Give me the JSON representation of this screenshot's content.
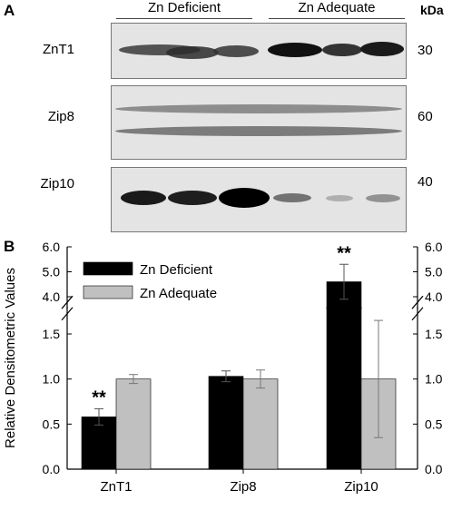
{
  "panel_a": {
    "label": "A",
    "groups": [
      "Zn Deficient",
      "Zn Adequate"
    ],
    "kda_label": "kDa",
    "blots": [
      {
        "name": "ZnT1",
        "mw": "30"
      },
      {
        "name": "Zip8",
        "mw": "60"
      },
      {
        "name": "Zip10",
        "mw": "40"
      }
    ]
  },
  "panel_b": {
    "label": "B"
  },
  "chart_data": {
    "type": "bar",
    "ylabel": "Relative Densitometric Values",
    "xlabel": "",
    "categories": [
      "ZnT1",
      "Zip8",
      "Zip10"
    ],
    "series": [
      {
        "name": "Zn Deficient",
        "color": "#000000",
        "values": [
          0.58,
          1.03,
          4.6
        ],
        "errors": [
          0.09,
          0.06,
          0.7
        ]
      },
      {
        "name": "Zn Adequate",
        "color": "#c0c0c0",
        "values": [
          1.0,
          1.0,
          1.0
        ],
        "errors": [
          0.05,
          0.1,
          0.65
        ]
      }
    ],
    "y_axis_break": {
      "lower_range": [
        0.0,
        1.8
      ],
      "upper_range": [
        3.5,
        6.0
      ]
    },
    "yticks_lower": [
      "0.0",
      "0.5",
      "1.0",
      "1.5"
    ],
    "yticks_upper": [
      "4.0",
      "5.0",
      "6.0"
    ],
    "annotations": [
      {
        "text": "**",
        "category": "ZnT1",
        "series": "Zn Deficient"
      },
      {
        "text": "**",
        "category": "Zip10",
        "series": "Zn Deficient"
      }
    ],
    "legend_position": "top-left",
    "grid": false
  }
}
